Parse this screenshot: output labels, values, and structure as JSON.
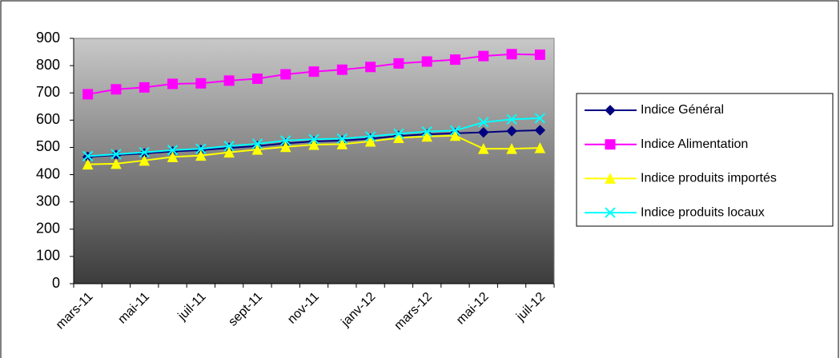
{
  "chart_data": {
    "type": "line",
    "categories": [
      "mars-11",
      null,
      "mai-11",
      null,
      "juil-11",
      null,
      "sept-11",
      null,
      "nov-11",
      null,
      "janv-12",
      null,
      "mars-12",
      null,
      "mai-12",
      null,
      "juil-12"
    ],
    "series": [
      {
        "name": "Indice Général",
        "color": "#000080",
        "marker": "diamond",
        "values": [
          465,
          472,
          478,
          485,
          490,
          498,
          505,
          515,
          522,
          525,
          532,
          542,
          548,
          552,
          555,
          560,
          563
        ]
      },
      {
        "name": "Indice Alimentation",
        "color": "#ff00ff",
        "marker": "square",
        "values": [
          695,
          713,
          720,
          733,
          735,
          745,
          752,
          768,
          778,
          785,
          795,
          808,
          815,
          822,
          835,
          842,
          840
        ]
      },
      {
        "name": "Indice produits importés",
        "color": "#ffff00",
        "marker": "triangle",
        "values": [
          438,
          440,
          452,
          465,
          470,
          482,
          492,
          502,
          510,
          512,
          522,
          535,
          540,
          543,
          495,
          495,
          498
        ]
      },
      {
        "name": "Indice produits locaux",
        "color": "#00ffff",
        "marker": "x",
        "values": [
          468,
          475,
          482,
          490,
          495,
          505,
          513,
          525,
          530,
          532,
          540,
          550,
          558,
          562,
          592,
          603,
          607
        ]
      }
    ],
    "ylim": [
      0,
      900
    ],
    "yticks": [
      0,
      100,
      200,
      300,
      400,
      500,
      600,
      700,
      800,
      900
    ],
    "legend": "right"
  }
}
